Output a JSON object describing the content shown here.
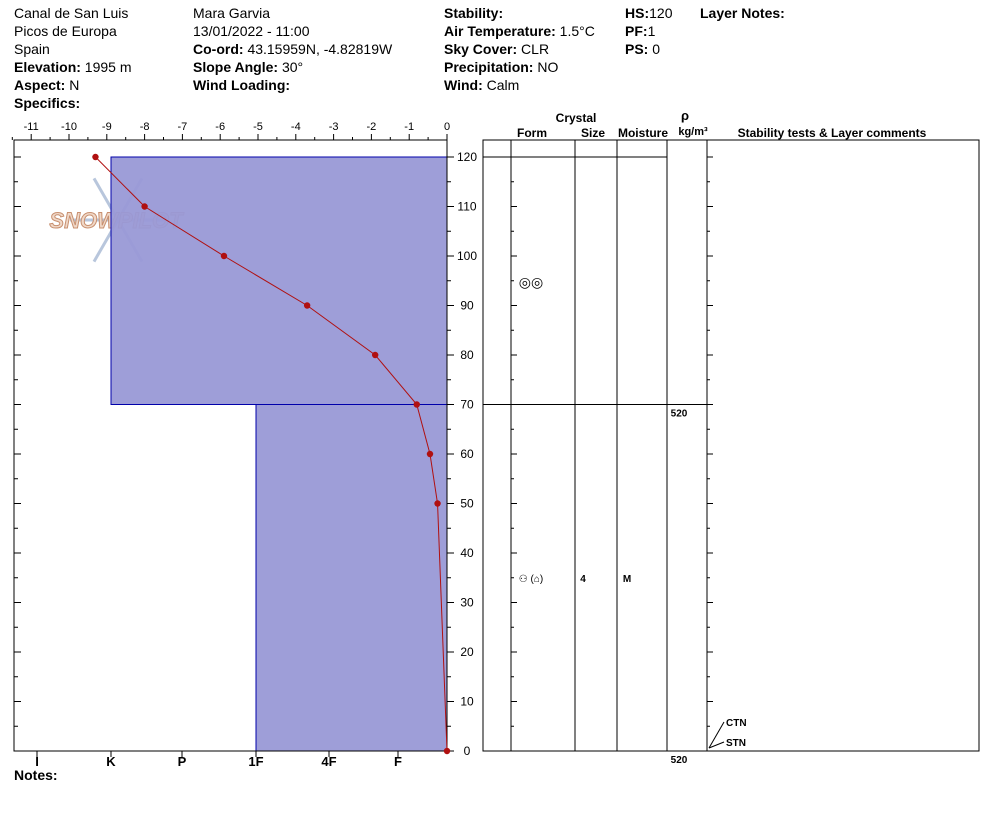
{
  "header": {
    "location": "Canal de San Luis",
    "range": "Picos de Europa",
    "country": "Spain",
    "elevation_label": "Elevation:",
    "elevation": "1995 m",
    "aspect_label": "Aspect:",
    "aspect": "N",
    "specifics_label": "Specifics:",
    "observer": "Mara Garvia",
    "datetime": "13/01/2022 - 11:00",
    "coord_label": "Co-ord:",
    "coord": "43.15959N, -4.82819W",
    "slope_label": "Slope Angle:",
    "slope": "30°",
    "wind_loading_label": "Wind Loading:",
    "stability_label": "Stability:",
    "air_temp_label": "Air Temperature:",
    "air_temp": "1.5°C",
    "sky_label": "Sky Cover:",
    "sky": "CLR",
    "precip_label": "Precipitation:",
    "precip": "NO",
    "wind_label": "Wind:",
    "wind": "Calm",
    "hs_label": "HS:",
    "hs": "120",
    "pf_label": "PF:",
    "pf": "1",
    "ps_label": "PS:",
    "ps": "0",
    "layer_notes_label": "Layer Notes:",
    "notes_label": "Notes:"
  },
  "logo_text": "SNOWPILOT",
  "colors": {
    "layer_fill": "#9999d6",
    "layer_edge": "#0000aa",
    "temp": "#b01010"
  },
  "chart_data": {
    "type": "line",
    "temperature_axis": {
      "ticks": [
        -11,
        -10,
        -9,
        -8,
        -7,
        -6,
        -5,
        -4,
        -3,
        -2,
        -1,
        0
      ],
      "range": [
        -11.5,
        0
      ]
    },
    "height_axis": {
      "ticks": [
        0,
        10,
        20,
        30,
        40,
        50,
        60,
        70,
        80,
        90,
        100,
        110,
        120
      ],
      "range": [
        0,
        123
      ]
    },
    "hardness_axis": {
      "labels": [
        "I",
        "K",
        "P",
        "1F",
        "4F",
        "F"
      ]
    },
    "temperature_profile": {
      "height_cm": [
        120,
        110,
        100,
        90,
        80,
        70,
        60,
        50,
        0
      ],
      "temp_c": [
        -9.3,
        -8.0,
        -5.9,
        -3.7,
        -1.9,
        -0.8,
        -0.45,
        -0.25,
        0.0
      ]
    },
    "layers": [
      {
        "top_cm": 120,
        "bottom_cm": 70,
        "hardness": "K",
        "form": "◎◎",
        "size": "",
        "moisture": "",
        "density": ""
      },
      {
        "top_cm": 70,
        "bottom_cm": 0,
        "hardness": "1F",
        "form": "⚇ (⌂)",
        "size": "4",
        "moisture": "M",
        "density": "520"
      }
    ],
    "density_labels": [
      {
        "height_cm": 70,
        "text": "520"
      },
      {
        "height_cm": 0,
        "text": "520"
      }
    ],
    "columns": {
      "crystal": "Crystal",
      "form": "Form",
      "size": "Size",
      "moisture": "Moisture",
      "rho": "ρ",
      "rho_unit": "kg/m³",
      "comments": "Stability tests & Layer comments"
    },
    "stability_tests": [
      {
        "height_cm": 4,
        "text": "CTN"
      },
      {
        "height_cm": 0,
        "text": "STN"
      }
    ]
  }
}
